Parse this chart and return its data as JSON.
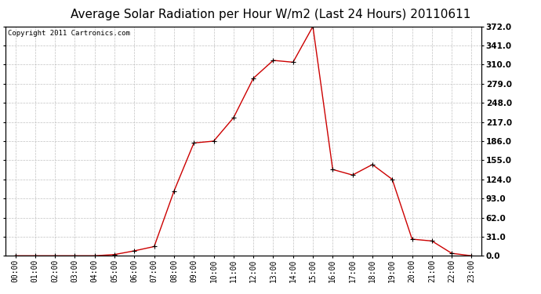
{
  "title": "Average Solar Radiation per Hour W/m2 (Last 24 Hours) 20110611",
  "copyright": "Copyright 2011 Cartronics.com",
  "x_labels": [
    "00:00",
    "01:00",
    "02:00",
    "03:00",
    "04:00",
    "05:00",
    "06:00",
    "07:00",
    "08:00",
    "09:00",
    "10:00",
    "11:00",
    "12:00",
    "13:00",
    "14:00",
    "15:00",
    "16:00",
    "17:00",
    "18:00",
    "19:00",
    "20:00",
    "21:00",
    "22:00",
    "23:00"
  ],
  "y_values": [
    0,
    0,
    0,
    0,
    0,
    2,
    8,
    15,
    105,
    183,
    186,
    224,
    288,
    317,
    314,
    372,
    140,
    131,
    148,
    124,
    27,
    24,
    4,
    0
  ],
  "y_ticks": [
    0.0,
    31.0,
    62.0,
    93.0,
    124.0,
    155.0,
    186.0,
    217.0,
    248.0,
    279.0,
    310.0,
    341.0,
    372.0
  ],
  "line_color": "#cc0000",
  "marker_color": "#000000",
  "bg_color": "#ffffff",
  "grid_color": "#bbbbbb",
  "title_fontsize": 11,
  "copyright_fontsize": 6.5,
  "tick_fontsize": 7,
  "ytick_fontsize": 7.5
}
